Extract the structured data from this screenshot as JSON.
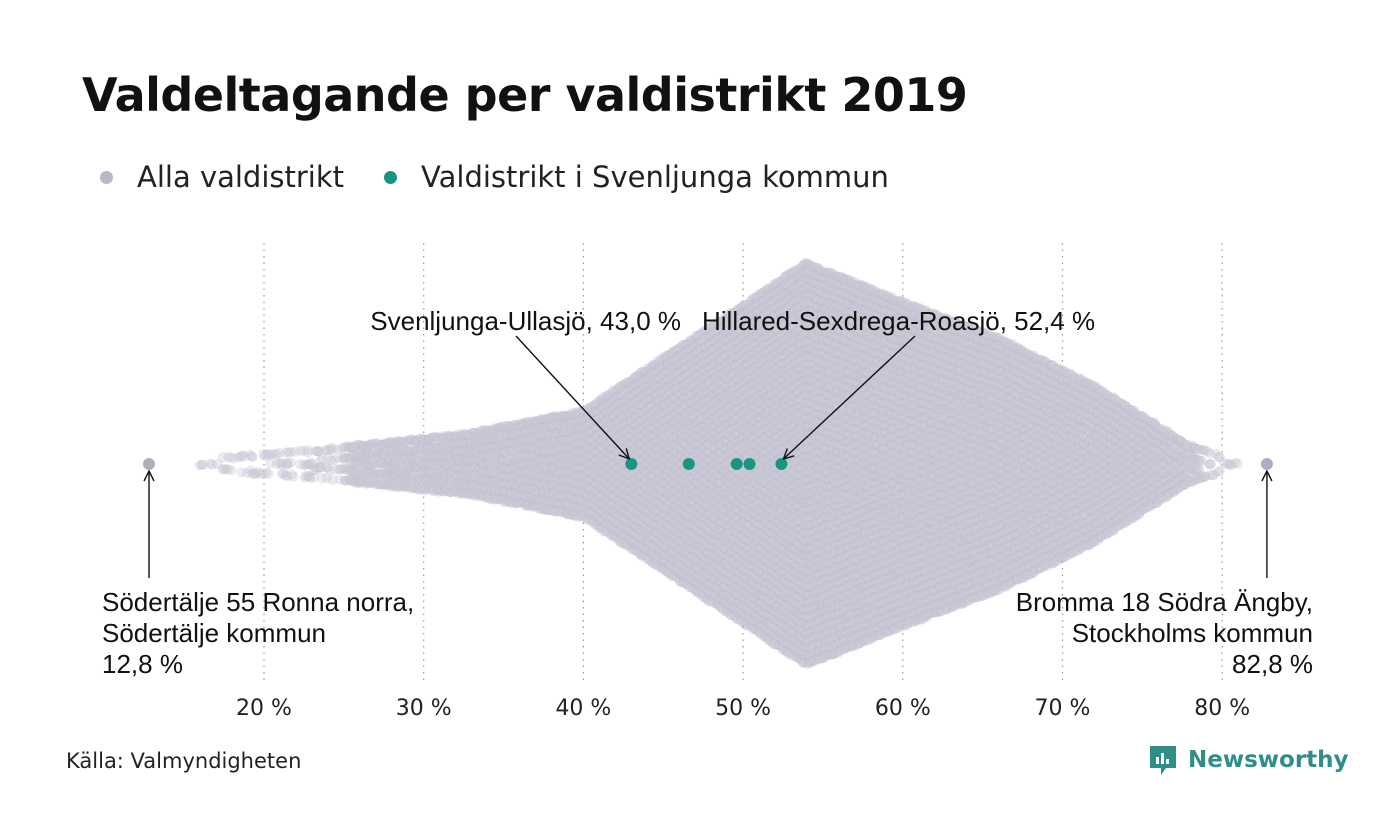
{
  "title": "Valdeltagande per valdistrikt 2019",
  "legend": [
    {
      "label": "Alla valdistrikt",
      "color": "#b9b8c8"
    },
    {
      "label": "Valdistrikt i Svenljunga kommun",
      "color": "#1a9483"
    }
  ],
  "source": "Källa: Valmyndigheten",
  "brand": {
    "name": "Newsworthy",
    "icon": "newsworthy-logo-icon"
  },
  "colors": {
    "all_points": "#c9c8d6",
    "highlight": "#1a9483",
    "grid": "#999999"
  },
  "chart_data": {
    "type": "beeswarm",
    "title": "Valdeltagande per valdistrikt 2019",
    "x_unit": "%",
    "xlim": [
      11,
      84
    ],
    "x_ticks": [
      20,
      30,
      40,
      50,
      60,
      70,
      80
    ],
    "x_tick_labels": [
      "20 %",
      "30 %",
      "40 %",
      "50 %",
      "60 %",
      "70 %",
      "80 %"
    ],
    "grid": "vertical dotted",
    "legend_position": "top-left",
    "distribution_peak": 54,
    "series": [
      {
        "name": "Alla valdistrikt",
        "extremes": [
          12.8,
          82.8
        ]
      },
      {
        "name": "Valdistrikt i Svenljunga kommun",
        "values": [
          43.0,
          46.6,
          49.6,
          50.4,
          52.4
        ]
      }
    ],
    "annotations": [
      {
        "id": "ann-ullasjo",
        "lines": [
          "Svenljunga-Ullasjö, 43,0 %"
        ],
        "x": 43.0
      },
      {
        "id": "ann-hillared",
        "lines": [
          "Hillared-Sexdrega-Roasjö, 52,4 %"
        ],
        "x": 52.4
      },
      {
        "id": "ann-min",
        "lines": [
          "Södertälje 55 Ronna norra,",
          "Södertälje kommun",
          "12,8 %"
        ],
        "x": 12.8
      },
      {
        "id": "ann-max",
        "lines": [
          "Bromma 18 Södra Ängby,",
          "Stockholms kommun",
          "82,8 %"
        ],
        "x": 82.8
      }
    ]
  }
}
